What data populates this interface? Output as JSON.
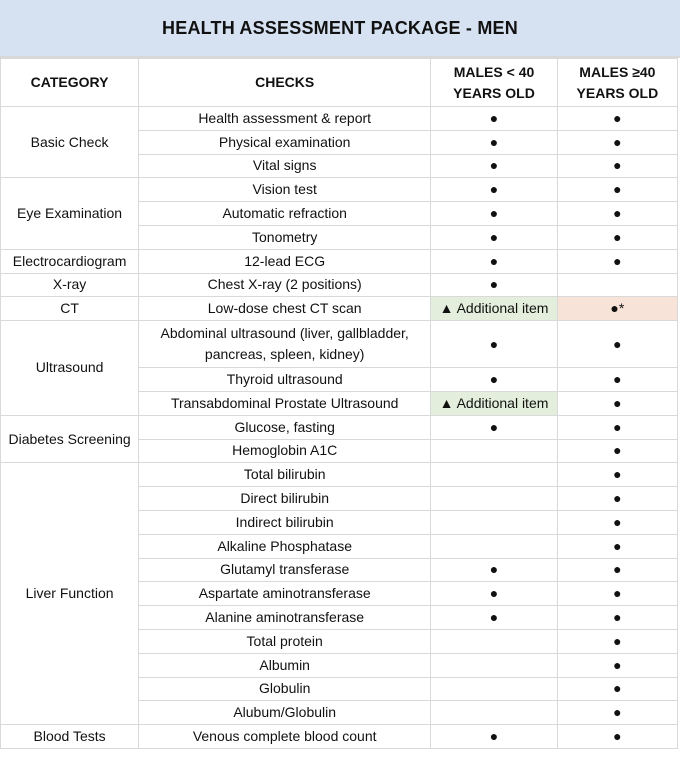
{
  "title": "HEALTH ASSESSMENT PACKAGE - MEN",
  "headers": [
    "CATEGORY",
    "CHECKS",
    "MALES < 40 YEARS OLD",
    "MALES ≥40 YEARS OLD"
  ],
  "colors": {
    "title_bg": "#d6e2f1",
    "additional_bg": "#e3efdc",
    "highlight_bg": "#f7e3d8"
  },
  "groups": [
    {
      "category": "Basic Check",
      "rows": [
        {
          "check": "Health assessment & report",
          "under40": "●",
          "over40": "●"
        },
        {
          "check": "Physical examination",
          "under40": "●",
          "over40": "●"
        },
        {
          "check": "Vital signs",
          "under40": "●",
          "over40": "●"
        }
      ]
    },
    {
      "category": "Eye Examination",
      "rows": [
        {
          "check": "Vision test",
          "under40": "●",
          "over40": "●"
        },
        {
          "check": "Automatic refraction",
          "under40": "●",
          "over40": "●"
        },
        {
          "check": "Tonometry",
          "under40": "●",
          "over40": "●"
        }
      ]
    },
    {
      "category": "Electrocardiogram",
      "rows": [
        {
          "check": "12-lead ECG",
          "under40": "●",
          "over40": "●"
        }
      ]
    },
    {
      "category": "X-ray",
      "rows": [
        {
          "check": "Chest X-ray (2 positions)",
          "under40": "●",
          "over40": ""
        }
      ]
    },
    {
      "category": "CT",
      "rows": [
        {
          "check": "Low-dose chest CT scan",
          "under40": "▲ Additional item",
          "over40": "●*"
        }
      ]
    },
    {
      "category": "Ultrasound",
      "rows": [
        {
          "check": "Abdominal ultrasound (liver, gallbladder, pancreas, spleen, kidney)",
          "under40": "●",
          "over40": "●"
        },
        {
          "check": "Thyroid ultrasound",
          "under40": "●",
          "over40": "●"
        },
        {
          "check": "Transabdominal Prostate Ultrasound",
          "under40": "▲ Additional item",
          "over40": "●"
        }
      ]
    },
    {
      "category": "Diabetes Screening",
      "rows": [
        {
          "check": "Glucose, fasting",
          "under40": "●",
          "over40": "●"
        },
        {
          "check": "Hemoglobin A1C",
          "under40": "",
          "over40": "●"
        }
      ]
    },
    {
      "category": "Liver Function",
      "rows": [
        {
          "check": "Total bilirubin",
          "under40": "",
          "over40": "●"
        },
        {
          "check": "Direct bilirubin",
          "under40": "",
          "over40": "●"
        },
        {
          "check": "Indirect bilirubin",
          "under40": "",
          "over40": "●"
        },
        {
          "check": "Alkaline Phosphatase",
          "under40": "",
          "over40": "●"
        },
        {
          "check": "Glutamyl transferase",
          "under40": "●",
          "over40": "●"
        },
        {
          "check": "Aspartate aminotransferase",
          "under40": "●",
          "over40": "●"
        },
        {
          "check": "Alanine aminotransferase",
          "under40": "●",
          "over40": "●"
        },
        {
          "check": "Total protein",
          "under40": "",
          "over40": "●"
        },
        {
          "check": "Albumin",
          "under40": "",
          "over40": "●"
        },
        {
          "check": "Globulin",
          "under40": "",
          "over40": "●"
        },
        {
          "check": "Alubum/Globulin",
          "under40": "",
          "over40": "●"
        }
      ]
    },
    {
      "category": "Blood Tests",
      "rows": [
        {
          "check": "Venous complete blood count",
          "under40": "●",
          "over40": "●"
        }
      ]
    }
  ]
}
